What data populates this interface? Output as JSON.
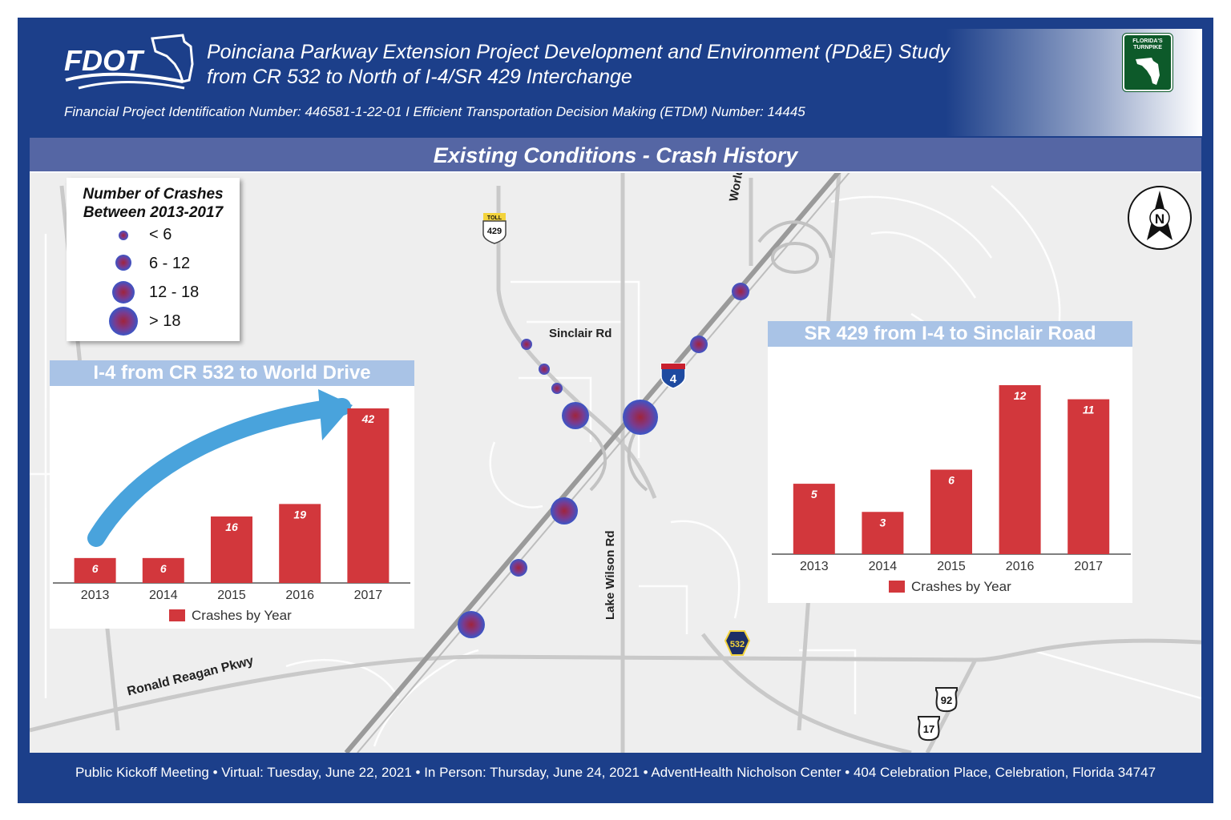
{
  "header": {
    "logo_text": "FDOT",
    "title_line1": "Poinciana Parkway Extension Project Development and Environment (PD&E) Study",
    "title_line2": "from CR 532 to North of I-4/SR 429 Interchange",
    "project_ids": "Financial Project Identification Number: 446581-1-22-01  I  Efficient Transportation Decision Making (ETDM) Number: 14445",
    "turnpike_badge": "FLORIDA'S TURNPIKE"
  },
  "map": {
    "band_title": "Existing Conditions - Crash History",
    "legend": {
      "title_line1": "Number of Crashes",
      "title_line2": "Between 2013-2017",
      "items": [
        "< 6",
        "6 - 12",
        "12 - 18",
        "> 18"
      ]
    },
    "road_labels": {
      "sinclair": "Sinclair Rd",
      "world_dr": "World Dr",
      "lake_wilson": "Lake Wilson Rd",
      "ronald_reagan": "Ronald Reagan Pkwy"
    },
    "shields": {
      "toll": "TOLL",
      "sr429": "429",
      "i4": "4",
      "cr532": "532",
      "us92": "92",
      "us17": "17"
    },
    "north_label": "N"
  },
  "chart_data": [
    {
      "type": "bar",
      "title": "I-4 from CR 532 to World Drive",
      "categories": [
        "2013",
        "2014",
        "2015",
        "2016",
        "2017"
      ],
      "values": [
        6,
        6,
        16,
        19,
        42
      ],
      "legend": "Crashes by Year",
      "color": "#d2373c",
      "ylim": [
        0,
        42
      ]
    },
    {
      "type": "bar",
      "title": "SR 429 from I-4 to Sinclair Road",
      "categories": [
        "2013",
        "2014",
        "2015",
        "2016",
        "2017"
      ],
      "values": [
        5,
        3,
        6,
        12,
        11
      ],
      "legend": "Crashes by Year",
      "color": "#d2373c",
      "ylim": [
        0,
        12
      ]
    }
  ],
  "footer": {
    "text": "Public Kickoff Meeting • Virtual: Tuesday, June 22, 2021 • In Person: Thursday, June 24, 2021 • AdventHealth Nicholson Center • 404 Celebration Place, Celebration, Florida 34747"
  },
  "colors": {
    "frame": "#1c3f8a",
    "band": "#5566a4",
    "chart_title_bg": "#a9c3e6",
    "bar": "#d2373c",
    "arrow": "#49a3dc"
  }
}
